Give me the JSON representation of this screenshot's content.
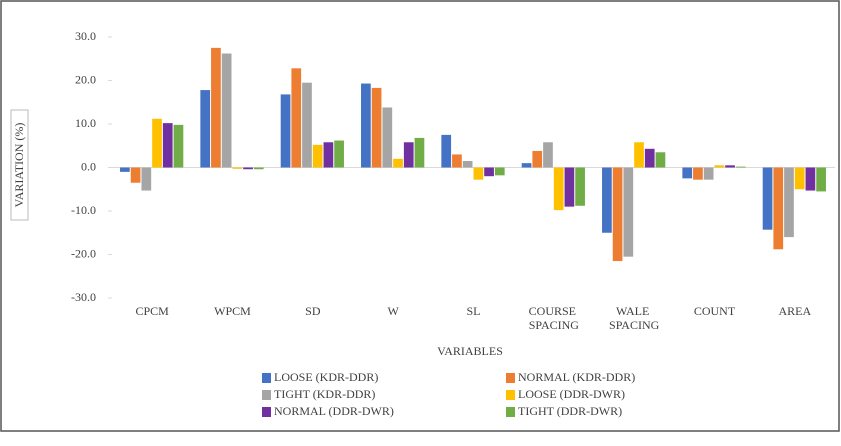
{
  "chart_data": {
    "type": "bar",
    "ylabel": "VARIATION (%)",
    "xlabel": "VARIABLES",
    "categories": [
      "CPCM",
      "WPCM",
      "SD",
      "W",
      "SL",
      "COURSE SPACING",
      "WALE SPACING",
      "COUNT",
      "AREA"
    ],
    "series": [
      {
        "name": "LOOSE (KDR-DDR)",
        "color": "#4472c4",
        "values": [
          -1,
          17.8,
          16.8,
          19.3,
          7.5,
          1.0,
          -15.0,
          -2.5,
          -14.3
        ]
      },
      {
        "name": "NORMAL (KDR-DDR)",
        "color": "#ed7d31",
        "values": [
          -3.5,
          27.5,
          22.8,
          18.3,
          3.0,
          3.8,
          -21.5,
          -2.8,
          -18.8
        ]
      },
      {
        "name": "TIGHT (KDR-DDR)",
        "color": "#a5a5a5",
        "values": [
          -5.3,
          26.2,
          19.5,
          13.8,
          1.5,
          5.8,
          -20.5,
          -2.8,
          -16.0
        ]
      },
      {
        "name": "LOOSE (DDR-DWR)",
        "color": "#ffc000",
        "values": [
          11.2,
          -0.3,
          5.2,
          2.0,
          -2.8,
          -9.8,
          5.8,
          0.5,
          -5.0
        ]
      },
      {
        "name": "NORMAL (DDR-DWR)",
        "color": "#7030a0",
        "values": [
          10.2,
          -0.4,
          5.8,
          5.8,
          -2.0,
          -9.0,
          4.3,
          0.5,
          -5.3
        ]
      },
      {
        "name": "TIGHT (DDR-DWR)",
        "color": "#70ad47",
        "values": [
          9.8,
          -0.4,
          6.2,
          6.8,
          -1.8,
          -8.8,
          3.5,
          0.2,
          -5.5
        ]
      }
    ],
    "ylim": [
      -30,
      30
    ],
    "yticks": [
      {
        "value": -30,
        "label": "-30.0"
      },
      {
        "value": -20,
        "label": "-20.0"
      },
      {
        "value": -10,
        "label": "-10.0"
      },
      {
        "value": 0,
        "label": "0.0"
      },
      {
        "value": 10,
        "label": "10.0"
      },
      {
        "value": 20,
        "label": "20.0"
      },
      {
        "value": 30,
        "label": "30.0"
      }
    ],
    "grid": false
  }
}
